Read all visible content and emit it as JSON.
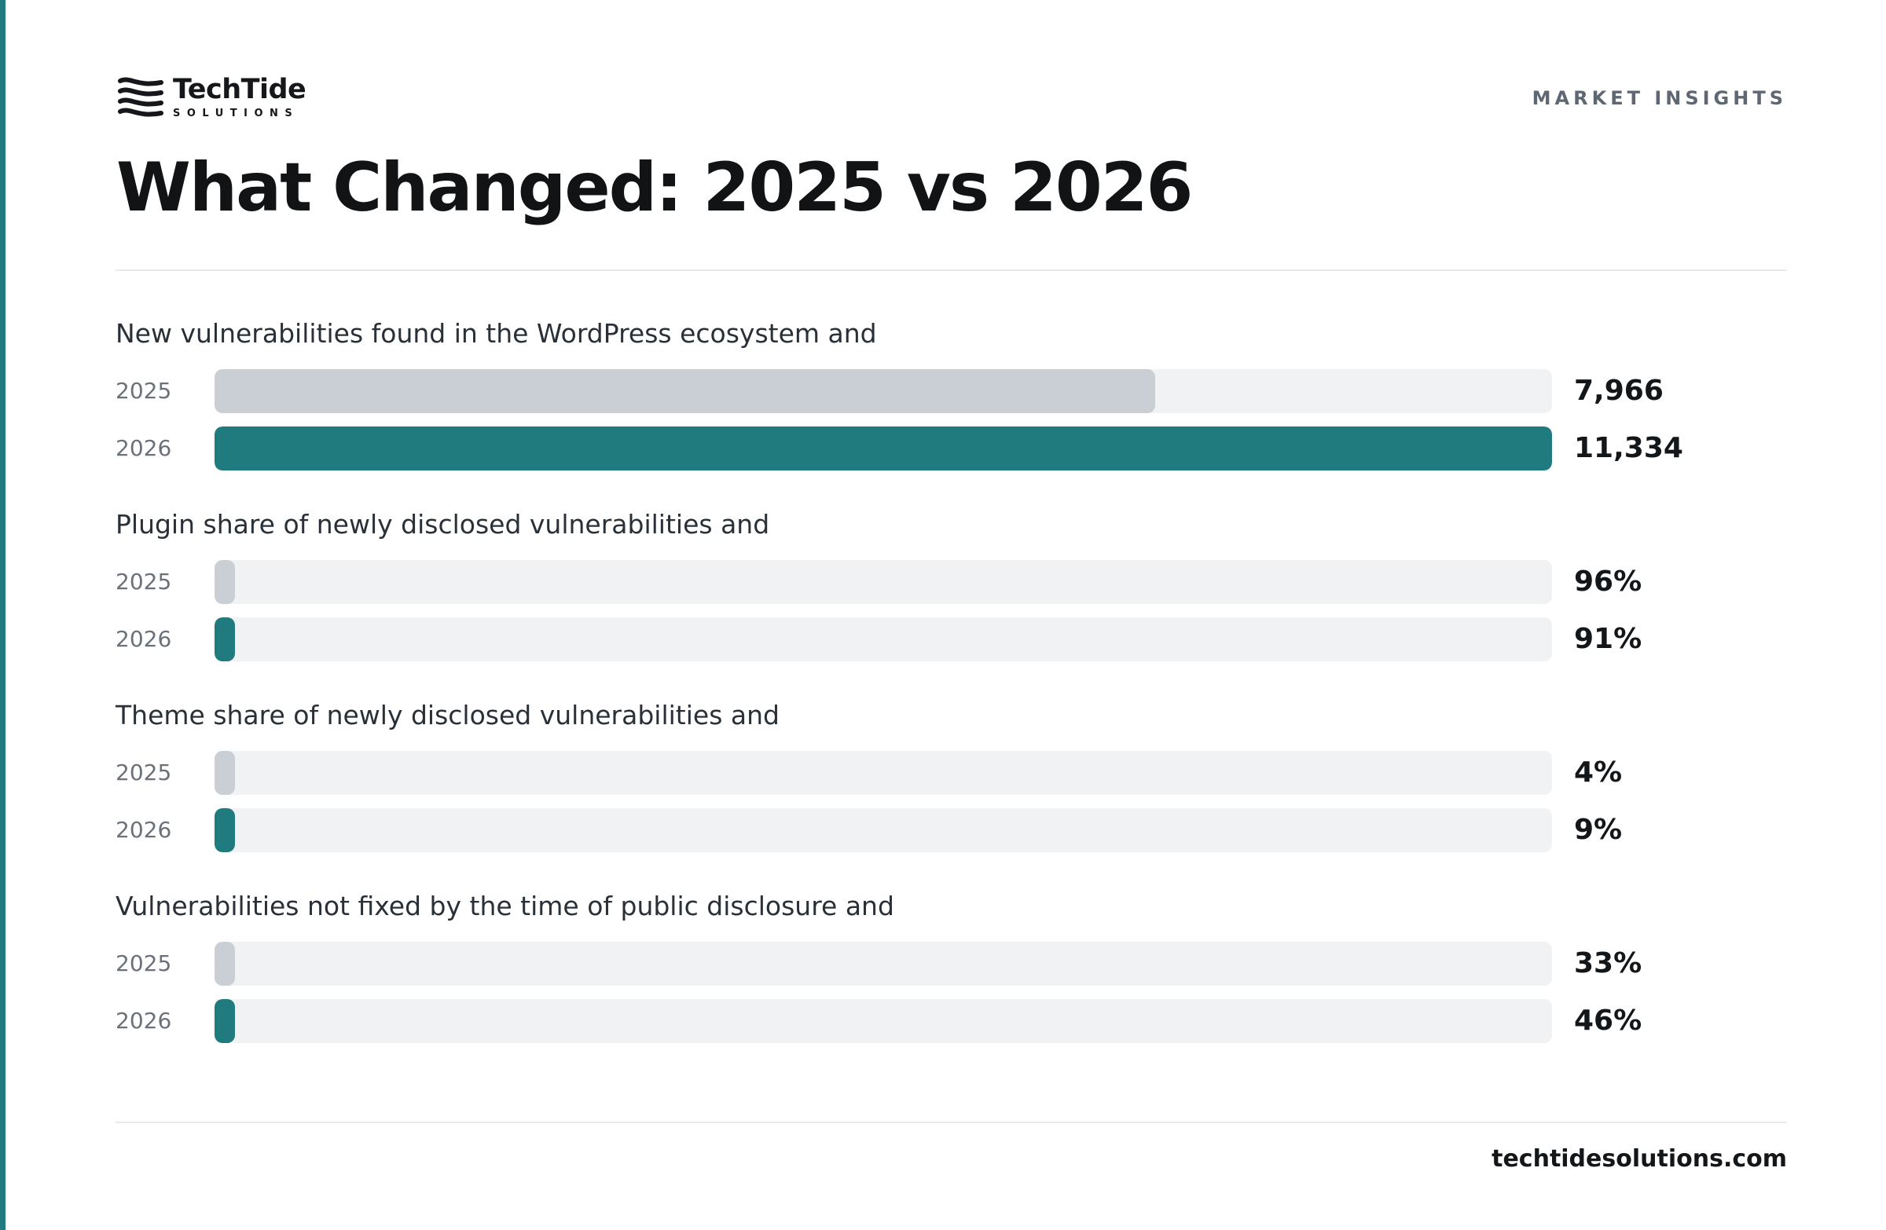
{
  "brand": {
    "name": "TechTide",
    "sub": "SOLUTIONS",
    "logo_icon": "wave-stripes-icon"
  },
  "header": {
    "section_tag": "MARKET INSIGHTS",
    "title": "What Changed: 2025 vs 2026"
  },
  "footer": {
    "url": "techtidesolutions.com"
  },
  "colors": {
    "accent": "#1f7b7d",
    "bar_2025": "#c9cfd5",
    "bar_2026": "#1f7b7d",
    "track": "#f1f2f3"
  },
  "chart_data": {
    "type": "bar",
    "orientation": "horizontal",
    "title": "What Changed: 2025 vs 2026",
    "legend": "none",
    "grid": false,
    "groups": [
      {
        "label": "New vulnerabilities found in the WordPress ecosystem and",
        "scale_max": 11334,
        "bars": [
          {
            "year": "2025",
            "value": 7966,
            "display": "7,966",
            "fill_fraction": 0.703
          },
          {
            "year": "2026",
            "value": 11334,
            "display": "11,334",
            "fill_fraction": 1.0
          }
        ]
      },
      {
        "label": "Plugin share of newly disclosed vulnerabilities and",
        "bars": [
          {
            "year": "2025",
            "value": 96,
            "display": "96%",
            "fill_fraction": 0.015
          },
          {
            "year": "2026",
            "value": 91,
            "display": "91%",
            "fill_fraction": 0.015
          }
        ]
      },
      {
        "label": "Theme share of newly disclosed vulnerabilities and",
        "bars": [
          {
            "year": "2025",
            "value": 4,
            "display": "4%",
            "fill_fraction": 0.015
          },
          {
            "year": "2026",
            "value": 9,
            "display": "9%",
            "fill_fraction": 0.015
          }
        ]
      },
      {
        "label": "Vulnerabilities not fixed by the time of public disclosure and",
        "bars": [
          {
            "year": "2025",
            "value": 33,
            "display": "33%",
            "fill_fraction": 0.015
          },
          {
            "year": "2026",
            "value": 46,
            "display": "46%",
            "fill_fraction": 0.015
          }
        ]
      }
    ]
  }
}
